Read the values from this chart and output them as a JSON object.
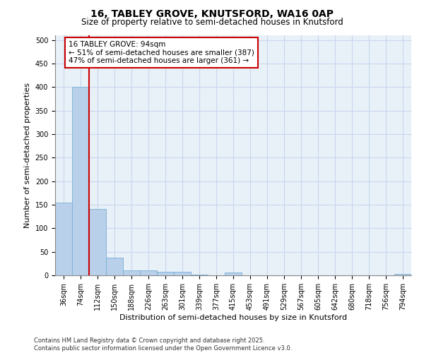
{
  "title_line1": "16, TABLEY GROVE, KNUTSFORD, WA16 0AP",
  "title_line2": "Size of property relative to semi-detached houses in Knutsford",
  "xlabel": "Distribution of semi-detached houses by size in Knutsford",
  "ylabel": "Number of semi-detached properties",
  "categories": [
    "36sqm",
    "74sqm",
    "112sqm",
    "150sqm",
    "188sqm",
    "226sqm",
    "263sqm",
    "301sqm",
    "339sqm",
    "377sqm",
    "415sqm",
    "453sqm",
    "491sqm",
    "529sqm",
    "567sqm",
    "605sqm",
    "642sqm",
    "680sqm",
    "718sqm",
    "756sqm",
    "794sqm"
  ],
  "values": [
    154,
    401,
    141,
    38,
    11,
    11,
    8,
    7,
    2,
    0,
    6,
    0,
    0,
    0,
    0,
    0,
    0,
    0,
    0,
    0,
    3
  ],
  "bar_color": "#b8d0ea",
  "bar_edge_color": "#7aafd4",
  "grid_color": "#c8d8ee",
  "bg_color": "#e8f0f8",
  "property_line_xidx": 1.5,
  "annotation_title": "16 TABLEY GROVE: 94sqm",
  "annotation_smaller": "← 51% of semi-detached houses are smaller (387)",
  "annotation_larger": "47% of semi-detached houses are larger (361) →",
  "annotation_box_fill": "#ffffff",
  "annotation_box_edge": "#cc0000",
  "footer": "Contains HM Land Registry data © Crown copyright and database right 2025.\nContains public sector information licensed under the Open Government Licence v3.0.",
  "ylim": [
    0,
    510
  ],
  "yticks": [
    0,
    50,
    100,
    150,
    200,
    250,
    300,
    350,
    400,
    450,
    500
  ],
  "title1_fontsize": 10,
  "title2_fontsize": 8.5,
  "tick_fontsize": 7,
  "axis_label_fontsize": 8,
  "footer_fontsize": 6,
  "annotation_fontsize": 7.5
}
